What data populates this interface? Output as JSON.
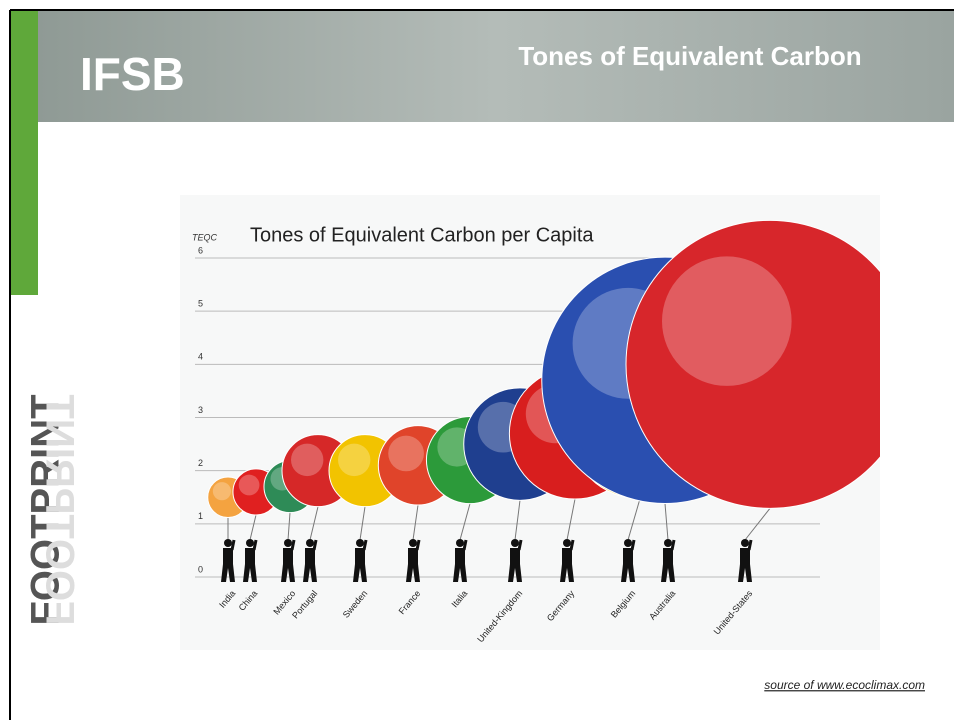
{
  "header": {
    "logo": "IFSB",
    "title": "Tones of Equivalent Carbon"
  },
  "side_text": "FOOTPRINT",
  "source": "source of www.ecoclimax.com",
  "chart_data": {
    "type": "balloon",
    "title": "Tones of Equivalent Carbon per Capita",
    "y_label": "TEQC",
    "categories": [
      "India",
      "China",
      "Mexico",
      "Portugal",
      "Sweden",
      "France",
      "Italia",
      "United-Kingdom",
      "Germany",
      "Belgium",
      "Australia",
      "United-States"
    ],
    "values": [
      1.5,
      1.6,
      1.7,
      2.0,
      2.0,
      2.1,
      2.2,
      2.5,
      2.7,
      2.8,
      3.7,
      4.0
    ],
    "colors": [
      "#f4a340",
      "#e02020",
      "#2e8b57",
      "#d62828",
      "#f2c300",
      "#e0442a",
      "#2c9a3a",
      "#1f3f8f",
      "#d81e1e",
      "#f5c400",
      "#2a4fb0",
      "#d7262b"
    ],
    "ylim": [
      0,
      6
    ],
    "yticks": [
      0,
      1,
      2,
      3,
      4,
      5,
      6
    ],
    "grid": true
  }
}
